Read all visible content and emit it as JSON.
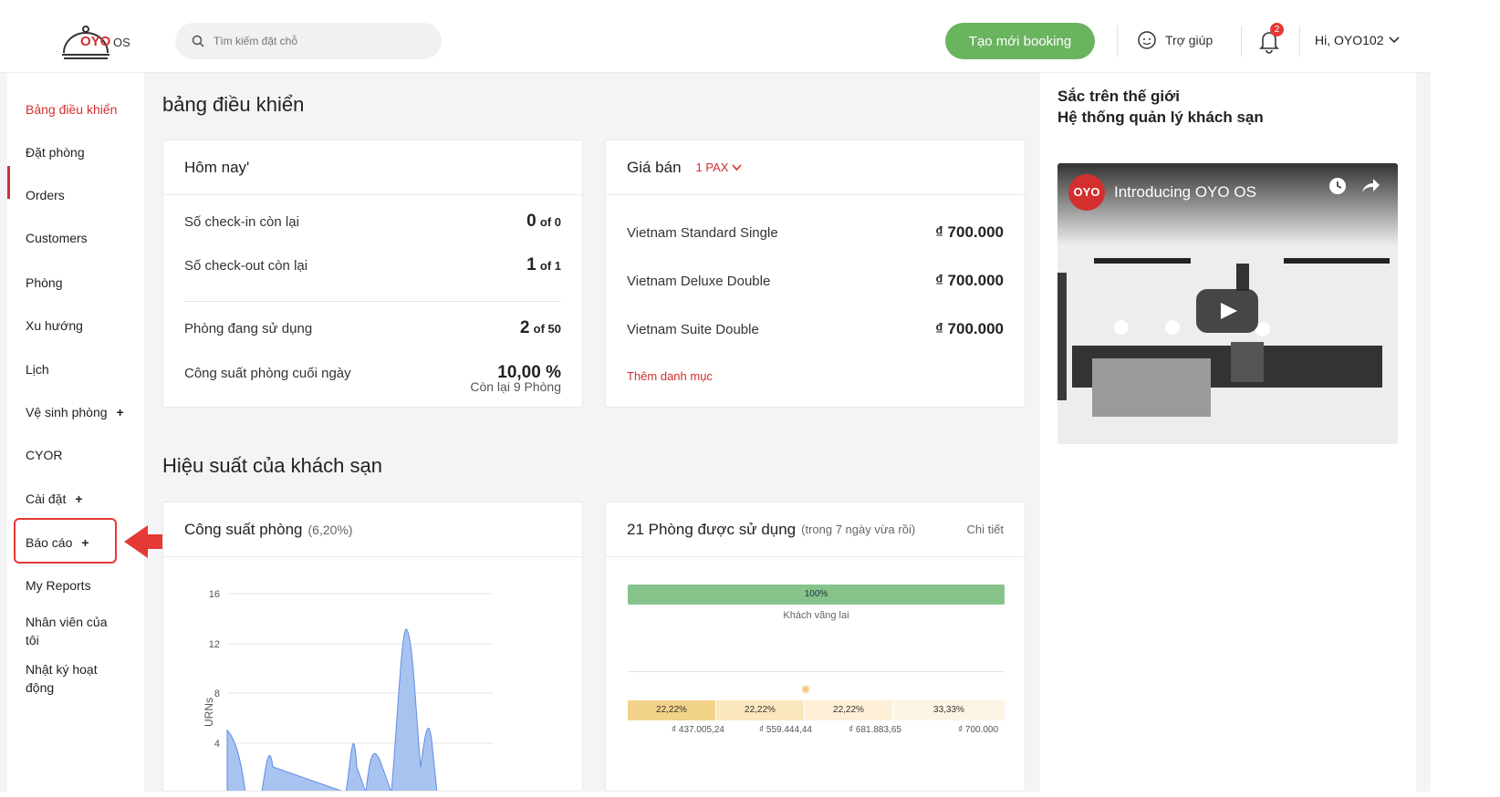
{
  "header": {
    "logo_text": "OYO",
    "logo_os": "OS",
    "search_placeholder": "Tìm kiếm đặt chỗ",
    "create_booking": "Tạo mới booking",
    "help": "Trợ giúp",
    "notification_count": "2",
    "user": "Hi, OYO102"
  },
  "sidebar": {
    "items": [
      {
        "label": "Bảng điều khiển"
      },
      {
        "label": "Đặt phòng"
      },
      {
        "label": "Orders"
      },
      {
        "label": "Customers"
      },
      {
        "label": "Phòng"
      },
      {
        "label": "Xu hướng"
      },
      {
        "label": "Lịch"
      },
      {
        "label": "Vệ sinh phòng"
      },
      {
        "label": "CYOR"
      },
      {
        "label": "Cài đặt"
      },
      {
        "label": "Báo cáo"
      },
      {
        "label": "My Reports"
      },
      {
        "label": "Nhân viên của tôi"
      },
      {
        "label": "Nhật ký hoạt động"
      }
    ],
    "plus": "+"
  },
  "main": {
    "title": "bảng điều khiển",
    "today": {
      "title": "Hôm nay'",
      "checkin_label": "Số check-in còn lại",
      "checkin_value": "0",
      "checkin_of": "of 0",
      "checkout_label": "Số check-out còn lại",
      "checkout_value": "1",
      "checkout_of": "of 1",
      "rooms_label": "Phòng đang sử dụng",
      "rooms_value": "2",
      "rooms_of": "of 50",
      "occupancy_label": "Công suất phòng cuối ngày",
      "occupancy_value": "10,00 %",
      "occupancy_sub": "Còn lại 9 Phòng"
    },
    "price": {
      "title": "Giá bán",
      "pax": "1 PAX",
      "rooms": [
        {
          "name": "Vietnam Standard Single",
          "price": "₫ 700.000"
        },
        {
          "name": "Vietnam Deluxe Double",
          "price": "₫ 700.000"
        },
        {
          "name": "Vietnam Suite Double",
          "price": "₫ 700.000"
        }
      ],
      "add_category": "Thêm danh mục"
    },
    "performance_title": "Hiệu suất của khách sạn",
    "occupancy_chart": {
      "title": "Công suất phòng",
      "subtitle": "(6,20%)",
      "ylabel": "URNs",
      "ticks": [
        "16",
        "12",
        "8",
        "4"
      ]
    },
    "rooms_used": {
      "title": "21 Phòng được sử dụng",
      "subtitle": "(trong 7 ngày vừa rồi)",
      "detail": "Chi tiết",
      "bar_label": "100%",
      "bar_caption": "Khách vãng lai",
      "segments": [
        {
          "pct": "22,22%",
          "price": "₫ 437.005,24"
        },
        {
          "pct": "22,22%",
          "price": "₫ 559.444,44"
        },
        {
          "pct": "22,22%",
          "price": "₫ 681.883,65"
        },
        {
          "pct": "33,33%",
          "price": "₫ 700.000"
        }
      ]
    }
  },
  "right_panel": {
    "title_line1": "Sắc trên thế giới",
    "title_line2": "Hệ thống quản lý khách sạn",
    "video_title": "Introducing OYO OS",
    "video_logo": "OYO"
  },
  "colors": {
    "accent_red": "#d32f2f",
    "booking_green": "#6ab35f",
    "bar_green": "#86c38a",
    "segment_yellow": "#f3d28a"
  }
}
